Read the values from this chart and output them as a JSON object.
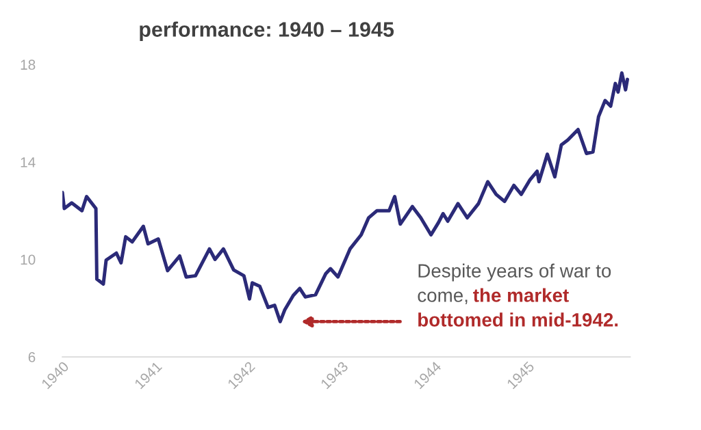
{
  "chart_data": {
    "type": "line",
    "title": "performance: 1940 – 1945",
    "x": [
      1940.0,
      1940.02,
      1940.1,
      1940.21,
      1940.26,
      1940.36,
      1940.37,
      1940.44,
      1940.47,
      1940.58,
      1940.63,
      1940.68,
      1940.75,
      1940.87,
      1940.92,
      1941.03,
      1941.13,
      1941.26,
      1941.33,
      1941.43,
      1941.58,
      1941.64,
      1941.73,
      1941.84,
      1941.95,
      1942.01,
      1942.04,
      1942.12,
      1942.21,
      1942.28,
      1942.34,
      1942.39,
      1942.48,
      1942.55,
      1942.61,
      1942.72,
      1942.83,
      1942.88,
      1942.96,
      1943.09,
      1943.21,
      1943.29,
      1943.38,
      1943.51,
      1943.57,
      1943.63,
      1943.76,
      1943.85,
      1943.96,
      1944.04,
      1944.09,
      1944.14,
      1944.25,
      1944.35,
      1944.47,
      1944.57,
      1944.66,
      1944.75,
      1944.85,
      1944.93,
      1945.02,
      1945.1,
      1945.12,
      1945.21,
      1945.29,
      1945.36,
      1945.43,
      1945.54,
      1945.63,
      1945.7,
      1945.76,
      1945.83,
      1945.89,
      1945.94,
      1945.97,
      1946.01,
      1946.05,
      1946.07
    ],
    "series": [
      {
        "color": "#2b2a78",
        "values": [
          12.75,
          12.09,
          12.32,
          12.0,
          12.58,
          12.09,
          9.19,
          8.99,
          9.97,
          10.26,
          9.86,
          10.93,
          10.72,
          11.36,
          10.64,
          10.84,
          9.54,
          10.14,
          9.28,
          9.33,
          10.43,
          10.0,
          10.43,
          9.57,
          9.33,
          8.38,
          9.04,
          8.9,
          8.03,
          8.12,
          7.45,
          7.94,
          8.52,
          8.81,
          8.46,
          8.55,
          9.42,
          9.62,
          9.28,
          10.43,
          11.01,
          11.71,
          12.0,
          12.0,
          12.58,
          11.45,
          12.17,
          11.71,
          11.01,
          11.51,
          11.88,
          11.57,
          12.29,
          11.71,
          12.29,
          13.19,
          12.67,
          12.38,
          13.04,
          12.67,
          13.25,
          13.62,
          13.19,
          14.32,
          13.39,
          14.7,
          14.9,
          15.33,
          14.35,
          14.41,
          15.86,
          16.52,
          16.29,
          17.22,
          16.87,
          17.65,
          16.96,
          17.39
        ]
      }
    ],
    "xlim": [
      1940,
      1946.1
    ],
    "xticks": [
      1940,
      1941,
      1942,
      1943,
      1944,
      1945
    ],
    "ylim": [
      6,
      18
    ],
    "yticks": [
      6,
      10,
      14,
      18
    ],
    "grid": false,
    "legend": false,
    "line_style": "solid",
    "marker": "none",
    "annotations": [
      "Despite years of war to\ncome,",
      "the market\nbottomed in mid-1942."
    ]
  }
}
